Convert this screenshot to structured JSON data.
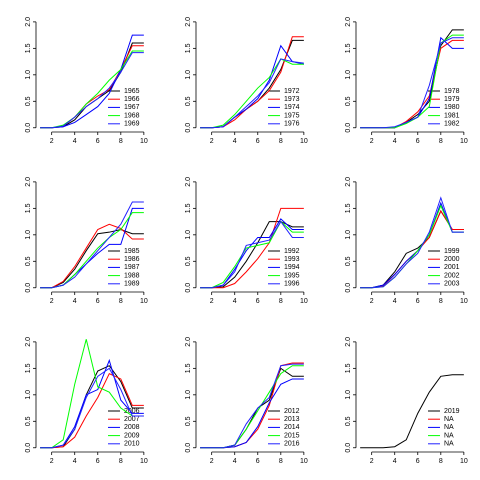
{
  "chart_data": [
    {
      "type": "line",
      "x": [
        1,
        2,
        3,
        4,
        5,
        6,
        7,
        8,
        9,
        10
      ],
      "xlim": [
        0.64,
        10.36
      ],
      "ylim": [
        -0.08,
        2.13
      ],
      "xticks": [
        2,
        4,
        6,
        8,
        10
      ],
      "yticks": [
        {
          "value": 0,
          "label": "0.0"
        },
        {
          "value": 0.5,
          "label": "0.5"
        },
        {
          "value": 1,
          "label": "1.0"
        },
        {
          "value": 1.5,
          "label": "1.5"
        },
        {
          "value": 2,
          "label": "2.0"
        }
      ],
      "series": [
        {
          "name": "1965",
          "color": "#000000",
          "values": [
            0,
            0,
            0.02,
            0.15,
            0.4,
            0.55,
            0.7,
            1.05,
            1.6,
            1.6
          ]
        },
        {
          "name": "1966",
          "color": "#ff0000",
          "values": [
            0,
            0,
            0.03,
            0.2,
            0.45,
            0.6,
            0.72,
            1.1,
            1.55,
            1.55
          ]
        },
        {
          "name": "1967",
          "color": "#0000ff",
          "values": [
            0,
            0,
            0.02,
            0.1,
            0.25,
            0.4,
            0.65,
            1.1,
            1.75,
            1.75
          ]
        },
        {
          "name": "1968",
          "color": "#00ff00",
          "values": [
            0,
            0,
            0.05,
            0.2,
            0.45,
            0.65,
            0.9,
            1.1,
            1.45,
            1.45
          ]
        },
        {
          "name": "1969",
          "color": "#2222ff",
          "values": [
            0,
            0,
            0.03,
            0.2,
            0.4,
            0.55,
            0.75,
            1.05,
            1.42,
            1.42
          ]
        }
      ]
    },
    {
      "type": "line",
      "x": [
        1,
        2,
        3,
        4,
        5,
        6,
        7,
        8,
        9,
        10
      ],
      "xlim": [
        0.64,
        10.36
      ],
      "ylim": [
        -0.08,
        2.13
      ],
      "xticks": [
        2,
        4,
        6,
        8,
        10
      ],
      "yticks": [
        {
          "value": 0,
          "label": "0.0"
        },
        {
          "value": 0.5,
          "label": "0.5"
        },
        {
          "value": 1,
          "label": "1.0"
        },
        {
          "value": 1.5,
          "label": "1.5"
        },
        {
          "value": 2,
          "label": "2.0"
        }
      ],
      "series": [
        {
          "name": "1972",
          "color": "#000000",
          "values": [
            0,
            0,
            0.02,
            0.2,
            0.35,
            0.5,
            0.75,
            1.1,
            1.65,
            1.65
          ]
        },
        {
          "name": "1973",
          "color": "#ff0000",
          "values": [
            0,
            0,
            0.02,
            0.15,
            0.35,
            0.5,
            0.7,
            1.05,
            1.72,
            1.72
          ]
        },
        {
          "name": "1974",
          "color": "#0000ff",
          "values": [
            0,
            0,
            0.02,
            0.2,
            0.35,
            0.55,
            0.9,
            1.55,
            1.25,
            1.2
          ]
        },
        {
          "name": "1975",
          "color": "#00ff00",
          "values": [
            0,
            0,
            0.05,
            0.25,
            0.5,
            0.75,
            0.95,
            1.3,
            1.2,
            1.2
          ]
        },
        {
          "name": "1976",
          "color": "#2222ff",
          "values": [
            0,
            0,
            0.02,
            0.2,
            0.4,
            0.6,
            0.85,
            1.3,
            1.25,
            1.22
          ]
        }
      ]
    },
    {
      "type": "line",
      "x": [
        1,
        2,
        3,
        4,
        5,
        6,
        7,
        8,
        9,
        10
      ],
      "xlim": [
        0.64,
        10.36
      ],
      "ylim": [
        -0.08,
        2.13
      ],
      "xticks": [
        2,
        4,
        6,
        8,
        10
      ],
      "yticks": [
        {
          "value": 0,
          "label": "0.0"
        },
        {
          "value": 0.5,
          "label": "0.5"
        },
        {
          "value": 1,
          "label": "1.0"
        },
        {
          "value": 1.5,
          "label": "1.5"
        },
        {
          "value": 2,
          "label": "2.0"
        }
      ],
      "series": [
        {
          "name": "1978",
          "color": "#000000",
          "values": [
            0,
            0,
            0,
            0,
            0.1,
            0.25,
            0.5,
            1.55,
            1.85,
            1.85
          ]
        },
        {
          "name": "1979",
          "color": "#ff0000",
          "values": [
            0,
            0,
            0,
            0,
            0.12,
            0.3,
            0.6,
            1.5,
            1.65,
            1.65
          ]
        },
        {
          "name": "1980",
          "color": "#0000ff",
          "values": [
            0,
            0,
            0,
            0,
            0.1,
            0.2,
            0.55,
            1.7,
            1.5,
            1.5
          ]
        },
        {
          "name": "1981",
          "color": "#00ff00",
          "values": [
            0,
            0,
            0,
            0,
            0.08,
            0.2,
            0.4,
            1.6,
            1.75,
            1.75
          ]
        },
        {
          "name": "1982",
          "color": "#2222ff",
          "values": [
            0,
            0,
            0,
            0.02,
            0.1,
            0.2,
            0.8,
            1.6,
            1.7,
            1.7
          ]
        }
      ]
    },
    {
      "type": "line",
      "x": [
        1,
        2,
        3,
        4,
        5,
        6,
        7,
        8,
        9,
        10
      ],
      "xlim": [
        0.64,
        10.36
      ],
      "ylim": [
        -0.08,
        2.13
      ],
      "xticks": [
        2,
        4,
        6,
        8,
        10
      ],
      "yticks": [
        {
          "value": 0,
          "label": "0.0"
        },
        {
          "value": 0.5,
          "label": "0.5"
        },
        {
          "value": 1,
          "label": "1.0"
        },
        {
          "value": 1.5,
          "label": "1.5"
        },
        {
          "value": 2,
          "label": "2.0"
        }
      ],
      "series": [
        {
          "name": "1985",
          "color": "#000000",
          "values": [
            0,
            0,
            0.1,
            0.35,
            0.7,
            1.02,
            1.05,
            1.1,
            1.02,
            1.02
          ]
        },
        {
          "name": "1986",
          "color": "#ff0000",
          "values": [
            0,
            0,
            0.12,
            0.4,
            0.75,
            1.1,
            1.2,
            1.12,
            0.92,
            0.92
          ]
        },
        {
          "name": "1987",
          "color": "#0000ff",
          "values": [
            0,
            0,
            0.05,
            0.25,
            0.45,
            0.65,
            0.82,
            0.82,
            1.5,
            1.5
          ]
        },
        {
          "name": "1988",
          "color": "#00ff00",
          "values": [
            0,
            0,
            0.05,
            0.25,
            0.5,
            0.75,
            0.95,
            1.1,
            1.42,
            1.42
          ]
        },
        {
          "name": "1989",
          "color": "#2222ff",
          "values": [
            0,
            0,
            0.05,
            0.2,
            0.45,
            0.7,
            0.95,
            1.2,
            1.62,
            1.62
          ]
        }
      ]
    },
    {
      "type": "line",
      "x": [
        1,
        2,
        3,
        4,
        5,
        6,
        7,
        8,
        9,
        10
      ],
      "xlim": [
        0.64,
        10.36
      ],
      "ylim": [
        -0.08,
        2.13
      ],
      "xticks": [
        2,
        4,
        6,
        8,
        10
      ],
      "yticks": [
        {
          "value": 0,
          "label": "0.0"
        },
        {
          "value": 0.5,
          "label": "0.5"
        },
        {
          "value": 1,
          "label": "1.0"
        },
        {
          "value": 1.5,
          "label": "1.5"
        },
        {
          "value": 2,
          "label": "2.0"
        }
      ],
      "series": [
        {
          "name": "1992",
          "color": "#000000",
          "values": [
            0,
            0,
            0.02,
            0.2,
            0.5,
            0.85,
            1.25,
            1.25,
            1.15,
            1.15
          ]
        },
        {
          "name": "1993",
          "color": "#ff0000",
          "values": [
            0,
            0,
            0,
            0.08,
            0.3,
            0.55,
            0.85,
            1.5,
            1.5,
            1.5
          ]
        },
        {
          "name": "1994",
          "color": "#0000ff",
          "values": [
            0,
            0,
            0.05,
            0.35,
            0.7,
            0.95,
            0.95,
            1.3,
            1.1,
            1.1
          ]
        },
        {
          "name": "1995",
          "color": "#00ff00",
          "values": [
            0,
            0,
            0.1,
            0.4,
            0.75,
            0.8,
            0.85,
            1.25,
            1.05,
            1.05
          ]
        },
        {
          "name": "1996",
          "color": "#2222ff",
          "values": [
            0,
            0,
            0.05,
            0.3,
            0.8,
            0.85,
            0.9,
            1.25,
            0.95,
            0.95
          ]
        }
      ]
    },
    {
      "type": "line",
      "x": [
        1,
        2,
        3,
        4,
        5,
        6,
        7,
        8,
        9,
        10
      ],
      "xlim": [
        0.64,
        10.36
      ],
      "ylim": [
        -0.08,
        2.13
      ],
      "xticks": [
        2,
        4,
        6,
        8,
        10
      ],
      "yticks": [
        {
          "value": 0,
          "label": "0.0"
        },
        {
          "value": 0.5,
          "label": "0.5"
        },
        {
          "value": 1,
          "label": "1.0"
        },
        {
          "value": 1.5,
          "label": "1.5"
        },
        {
          "value": 2,
          "label": "2.0"
        }
      ],
      "series": [
        {
          "name": "1999",
          "color": "#000000",
          "values": [
            0,
            0,
            0.05,
            0.3,
            0.65,
            0.75,
            0.95,
            1.45,
            1.1,
            1.1
          ]
        },
        {
          "name": "2000",
          "color": "#ff0000",
          "values": [
            0,
            0,
            0.03,
            0.25,
            0.5,
            0.7,
            0.95,
            1.45,
            1.1,
            1.1
          ]
        },
        {
          "name": "2001",
          "color": "#0000ff",
          "values": [
            0,
            0,
            0.05,
            0.25,
            0.5,
            0.7,
            1.0,
            1.6,
            1.05,
            1.05
          ]
        },
        {
          "name": "2002",
          "color": "#00ff00",
          "values": [
            0,
            0,
            0.02,
            0.2,
            0.45,
            0.7,
            1.0,
            1.55,
            1.05,
            1.05
          ]
        },
        {
          "name": "2003",
          "color": "#2222ff",
          "values": [
            0,
            0,
            0.02,
            0.2,
            0.45,
            0.65,
            1.05,
            1.7,
            1.05,
            1.05
          ]
        }
      ]
    },
    {
      "type": "line",
      "x": [
        1,
        2,
        3,
        4,
        5,
        6,
        7,
        8,
        9,
        10
      ],
      "xlim": [
        0.64,
        10.36
      ],
      "ylim": [
        -0.08,
        2.13
      ],
      "xticks": [
        2,
        4,
        6,
        8,
        10
      ],
      "yticks": [
        {
          "value": 0,
          "label": "0.0"
        },
        {
          "value": 0.5,
          "label": "0.5"
        },
        {
          "value": 1,
          "label": "1.0"
        },
        {
          "value": 1.5,
          "label": "1.5"
        },
        {
          "value": 2,
          "label": "2.0"
        }
      ],
      "series": [
        {
          "name": "2006",
          "color": "#000000",
          "values": [
            0,
            0,
            0.02,
            0.35,
            1.0,
            1.45,
            1.55,
            1.25,
            0.75,
            0.75
          ]
        },
        {
          "name": "2007",
          "color": "#ff0000",
          "values": [
            0,
            0,
            0.02,
            0.2,
            0.6,
            0.95,
            1.4,
            1.3,
            0.8,
            0.8
          ]
        },
        {
          "name": "2008",
          "color": "#0000ff",
          "values": [
            0,
            0,
            0.05,
            0.4,
            1.0,
            1.1,
            1.65,
            0.9,
            0.65,
            0.65
          ]
        },
        {
          "name": "2009",
          "color": "#00ff00",
          "values": [
            0,
            0,
            0.15,
            1.2,
            2.05,
            1.15,
            1.05,
            0.75,
            0.6,
            0.6
          ]
        },
        {
          "name": "2010",
          "color": "#2222ff",
          "values": [
            0,
            0,
            0.05,
            0.35,
            0.95,
            1.35,
            1.5,
            1.1,
            0.6,
            0.6
          ]
        }
      ]
    },
    {
      "type": "line",
      "x": [
        1,
        2,
        3,
        4,
        5,
        6,
        7,
        8,
        9,
        10
      ],
      "xlim": [
        0.64,
        10.36
      ],
      "ylim": [
        -0.08,
        2.13
      ],
      "xticks": [
        2,
        4,
        6,
        8,
        10
      ],
      "yticks": [
        {
          "value": 0,
          "label": "0.0"
        },
        {
          "value": 0.5,
          "label": "0.5"
        },
        {
          "value": 1,
          "label": "1.0"
        },
        {
          "value": 1.5,
          "label": "1.5"
        },
        {
          "value": 2,
          "label": "2.0"
        }
      ],
      "series": [
        {
          "name": "2012",
          "color": "#000000",
          "values": [
            0,
            0,
            0,
            0.05,
            0.35,
            0.75,
            0.9,
            1.5,
            1.35,
            1.35
          ]
        },
        {
          "name": "2013",
          "color": "#ff0000",
          "values": [
            0,
            0,
            0,
            0.02,
            0.1,
            0.35,
            0.8,
            1.55,
            1.6,
            1.6
          ]
        },
        {
          "name": "2014",
          "color": "#0000ff",
          "values": [
            0,
            0,
            0,
            0.02,
            0.1,
            0.4,
            0.85,
            1.2,
            1.3,
            1.3
          ]
        },
        {
          "name": "2015",
          "color": "#00ff00",
          "values": [
            0,
            0,
            0,
            0.05,
            0.35,
            0.7,
            1.05,
            1.4,
            1.55,
            1.55
          ]
        },
        {
          "name": "2016",
          "color": "#2222ff",
          "values": [
            0,
            0,
            0,
            0.05,
            0.45,
            0.75,
            0.95,
            1.55,
            1.58,
            1.58
          ]
        }
      ]
    },
    {
      "type": "line",
      "x": [
        1,
        2,
        3,
        4,
        5,
        6,
        7,
        8,
        9,
        10
      ],
      "xlim": [
        0.64,
        10.36
      ],
      "ylim": [
        -0.08,
        2.13
      ],
      "xticks": [
        2,
        4,
        6,
        8,
        10
      ],
      "yticks": [
        {
          "value": 0,
          "label": "0.0"
        },
        {
          "value": 0.5,
          "label": "0.5"
        },
        {
          "value": 1,
          "label": "1.0"
        },
        {
          "value": 1.5,
          "label": "1.5"
        },
        {
          "value": 2,
          "label": "2.0"
        }
      ],
      "series": [
        {
          "name": "2019",
          "color": "#000000",
          "values": [
            0,
            0,
            0,
            0.02,
            0.15,
            0.65,
            1.05,
            1.35,
            1.38,
            1.38
          ]
        },
        {
          "name": "NA",
          "color": "#ff0000",
          "values": [
            null,
            null,
            null,
            null,
            null,
            null,
            null,
            null,
            null,
            null
          ]
        },
        {
          "name": "NA",
          "color": "#0000ff",
          "values": [
            null,
            null,
            null,
            null,
            null,
            null,
            null,
            null,
            null,
            null
          ]
        },
        {
          "name": "NA",
          "color": "#00ff00",
          "values": [
            null,
            null,
            null,
            null,
            null,
            null,
            null,
            null,
            null,
            null
          ]
        },
        {
          "name": "NA",
          "color": "#2222ff",
          "values": [
            null,
            null,
            null,
            null,
            null,
            null,
            null,
            null,
            null,
            null
          ]
        }
      ]
    }
  ]
}
